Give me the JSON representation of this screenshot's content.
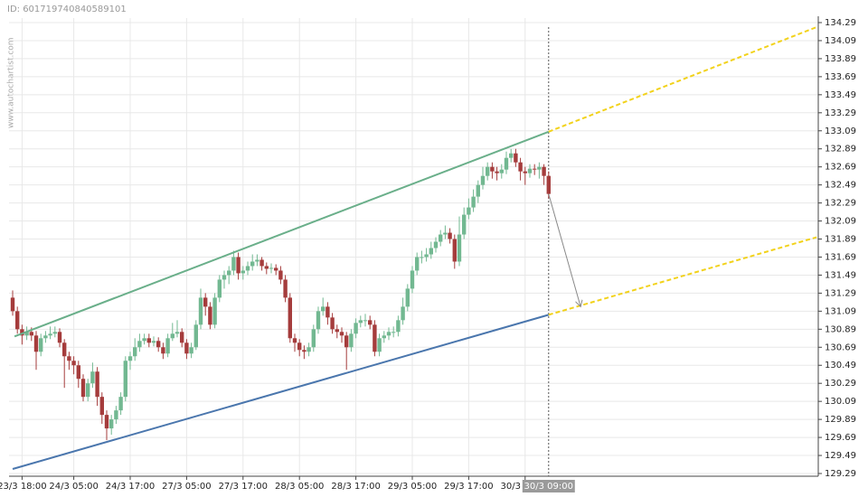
{
  "chart_data": {
    "type": "candlestick",
    "id_label": "ID: 601719740840589101",
    "watermark": "www.autochartist.com",
    "ylim": [
      129.29,
      134.29
    ],
    "yticks": [
      129.29,
      129.49,
      129.69,
      129.89,
      130.09,
      130.29,
      130.49,
      130.69,
      130.89,
      131.09,
      131.29,
      131.49,
      131.69,
      131.89,
      132.09,
      132.29,
      132.49,
      132.69,
      132.89,
      133.09,
      133.29,
      133.49,
      133.69,
      133.89,
      134.09,
      134.29
    ],
    "xlim": [
      -0.77,
      171.35
    ],
    "xticks": [
      {
        "value": 2,
        "label": "23/3 18:00"
      },
      {
        "value": 13,
        "label": "24/3 05:00"
      },
      {
        "value": 25,
        "label": "24/3 17:00"
      },
      {
        "value": 37,
        "label": "27/3 05:00"
      },
      {
        "value": 49,
        "label": "27/3 17:00"
      },
      {
        "value": 61,
        "label": "28/3 05:00"
      },
      {
        "value": 73,
        "label": "28/3 17:00"
      },
      {
        "value": 85,
        "label": "29/3 05:00"
      },
      {
        "value": 97,
        "label": "29/3 17:00"
      },
      {
        "value": 109,
        "label": "30/3 05:00"
      }
    ],
    "cursor": {
      "x": 114,
      "label": "30/3 09:00"
    },
    "grid": true,
    "up_color": "#72b891",
    "down_color": "#a53c3c",
    "open": [
      131.24,
      131.09,
      130.89,
      130.82,
      130.86,
      130.82,
      130.64,
      130.79,
      130.82,
      130.84,
      130.86,
      130.74,
      130.59,
      130.54,
      130.49,
      130.34,
      130.14,
      130.29,
      130.42,
      130.14,
      129.94,
      129.79,
      129.89,
      129.99,
      130.14,
      130.54,
      130.59,
      130.69,
      130.76,
      130.79,
      130.74,
      130.76,
      130.69,
      130.62,
      130.79,
      130.84,
      130.86,
      130.74,
      130.62,
      130.69,
      130.94,
      131.24,
      131.14,
      130.94,
      131.24,
      131.44,
      131.49,
      131.54,
      131.69,
      131.51,
      131.54,
      131.59,
      131.64,
      131.66,
      131.59,
      131.56,
      131.57,
      131.54,
      131.44,
      131.24,
      130.79,
      130.74,
      130.66,
      130.64,
      130.69,
      130.89,
      131.09,
      131.14,
      131.02,
      130.89,
      130.86,
      130.82,
      130.69,
      130.84,
      130.96,
      130.99,
      130.99,
      130.94,
      130.64,
      130.79,
      130.82,
      130.86,
      130.86,
      130.99,
      131.14,
      131.34,
      131.54,
      131.69,
      131.69,
      131.72,
      131.79,
      131.86,
      131.94,
      131.96,
      131.89,
      131.64,
      131.94,
      132.16,
      132.24,
      132.36,
      132.49,
      132.59,
      132.69,
      132.64,
      132.62,
      132.66,
      132.79,
      132.84,
      132.74,
      132.64,
      132.62,
      132.67,
      132.66,
      132.69,
      132.59
    ],
    "high": [
      131.32,
      131.14,
      130.94,
      130.92,
      130.91,
      130.87,
      130.84,
      130.87,
      130.92,
      130.92,
      130.9,
      130.78,
      130.64,
      130.59,
      130.54,
      130.39,
      130.34,
      130.52,
      130.47,
      130.19,
      129.99,
      129.94,
      130.04,
      130.19,
      130.59,
      130.64,
      130.79,
      130.84,
      130.84,
      130.84,
      130.81,
      130.8,
      130.74,
      130.84,
      130.96,
      130.99,
      130.9,
      130.78,
      130.74,
      130.99,
      131.34,
      131.29,
      131.19,
      131.29,
      131.49,
      131.54,
      131.59,
      131.76,
      131.74,
      131.59,
      131.64,
      131.72,
      131.72,
      131.69,
      131.63,
      131.62,
      131.61,
      131.59,
      131.49,
      131.29,
      130.84,
      130.78,
      130.71,
      130.74,
      130.94,
      131.14,
      131.24,
      131.19,
      131.07,
      130.94,
      130.91,
      130.86,
      130.89,
      131.01,
      131.04,
      131.06,
      131.04,
      130.99,
      130.84,
      130.87,
      130.91,
      130.92,
      131.04,
      131.24,
      131.39,
      131.59,
      131.74,
      131.76,
      131.79,
      131.86,
      131.91,
      131.99,
      132.04,
      132.01,
      131.94,
      132.14,
      132.24,
      132.34,
      132.44,
      132.54,
      132.69,
      132.74,
      132.74,
      132.69,
      132.72,
      132.86,
      132.89,
      132.89,
      132.79,
      132.69,
      132.72,
      132.72,
      132.74,
      132.72,
      132.64
    ],
    "low": [
      131.04,
      130.84,
      130.72,
      130.77,
      130.76,
      130.44,
      130.59,
      130.74,
      130.78,
      130.8,
      130.69,
      130.24,
      130.44,
      130.39,
      130.24,
      130.09,
      130.09,
      130.24,
      130.04,
      129.84,
      129.66,
      129.72,
      129.84,
      129.94,
      130.09,
      130.44,
      130.54,
      130.64,
      130.72,
      130.69,
      130.7,
      130.64,
      130.56,
      130.58,
      130.76,
      130.8,
      130.69,
      130.56,
      130.57,
      130.66,
      130.89,
      131.04,
      130.89,
      130.9,
      131.19,
      131.34,
      131.39,
      131.49,
      131.44,
      131.44,
      131.49,
      131.54,
      131.59,
      131.54,
      131.5,
      131.51,
      131.49,
      131.39,
      131.19,
      130.74,
      130.64,
      130.59,
      130.56,
      130.59,
      130.64,
      130.84,
      131.04,
      130.94,
      130.84,
      130.79,
      130.74,
      130.44,
      130.64,
      130.79,
      130.91,
      130.92,
      130.89,
      130.59,
      130.59,
      130.74,
      130.77,
      130.8,
      130.81,
      130.94,
      131.09,
      131.29,
      131.49,
      131.62,
      131.64,
      131.67,
      131.74,
      131.81,
      131.89,
      131.84,
      131.56,
      131.59,
      131.89,
      132.11,
      132.19,
      132.29,
      132.44,
      132.54,
      132.56,
      132.54,
      132.56,
      132.61,
      132.74,
      132.69,
      132.54,
      132.49,
      132.57,
      132.6,
      132.56,
      132.49,
      132.34
    ],
    "close": [
      131.09,
      130.89,
      130.82,
      130.86,
      130.82,
      130.64,
      130.79,
      130.82,
      130.84,
      130.86,
      130.74,
      130.59,
      130.54,
      130.49,
      130.34,
      130.14,
      130.29,
      130.42,
      130.14,
      129.94,
      129.79,
      129.89,
      129.99,
      130.14,
      130.54,
      130.59,
      130.69,
      130.76,
      130.79,
      130.74,
      130.76,
      130.69,
      130.62,
      130.79,
      130.84,
      130.86,
      130.74,
      130.62,
      130.69,
      130.94,
      131.24,
      131.14,
      130.94,
      131.24,
      131.44,
      131.49,
      131.54,
      131.69,
      131.51,
      131.54,
      131.59,
      131.64,
      131.66,
      131.59,
      131.56,
      131.57,
      131.54,
      131.44,
      131.24,
      130.79,
      130.74,
      130.66,
      130.64,
      130.69,
      130.89,
      131.09,
      131.14,
      131.02,
      130.89,
      130.86,
      130.82,
      130.69,
      130.84,
      130.96,
      130.99,
      130.99,
      130.94,
      130.64,
      130.79,
      130.82,
      130.86,
      130.86,
      130.99,
      131.14,
      131.34,
      131.54,
      131.69,
      131.69,
      131.72,
      131.79,
      131.86,
      131.94,
      131.96,
      131.89,
      131.64,
      131.94,
      132.16,
      132.24,
      132.36,
      132.49,
      132.59,
      132.69,
      132.64,
      132.62,
      132.66,
      132.79,
      132.84,
      132.74,
      132.64,
      132.62,
      132.67,
      132.66,
      132.69,
      132.59,
      132.39
    ],
    "lines": [
      {
        "color": "#6aaf8a",
        "dashed": false,
        "x": [
          0.4,
          114
        ],
        "y": [
          130.81,
          133.08
        ]
      },
      {
        "color": "#4a76ad",
        "dashed": false,
        "x": [
          0,
          114
        ],
        "y": [
          129.34,
          131.05
        ]
      },
      {
        "color": "#f2d21b",
        "dashed": true,
        "x": [
          114,
          171
        ],
        "y": [
          133.08,
          134.24
        ]
      },
      {
        "color": "#f2d21b",
        "dashed": true,
        "x": [
          114,
          171
        ],
        "y": [
          131.05,
          131.91
        ]
      },
      {
        "color": "#888888",
        "dashed": false,
        "arrow": true,
        "x": [
          114,
          120.8
        ],
        "y": [
          132.39,
          131.14
        ]
      }
    ]
  }
}
